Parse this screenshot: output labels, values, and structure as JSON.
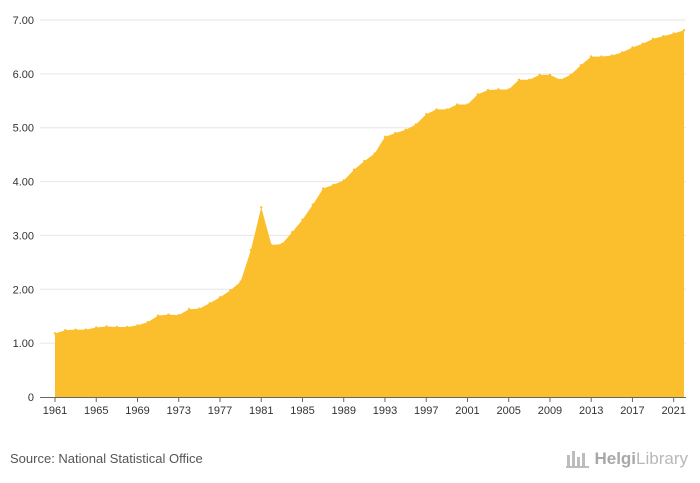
{
  "source_text": "Source: National Statistical Office",
  "logo": {
    "brand": "Helgi",
    "suffix": "Library",
    "icon": "helgi-library-logo-icon"
  },
  "colors": {
    "area": "#fbbf2d",
    "grid": "#e6e6e6",
    "axis": "#666666"
  },
  "chart_data": {
    "type": "area",
    "title": "",
    "xlabel": "",
    "ylabel": "",
    "xlim": [
      1961,
      2022
    ],
    "ylim": [
      0,
      7
    ],
    "grid": true,
    "y_ticks": [
      "0",
      "1.00",
      "2.00",
      "3.00",
      "4.00",
      "5.00",
      "6.00",
      "7.00"
    ],
    "x_ticks": [
      "1961",
      "1965",
      "1969",
      "1973",
      "1977",
      "1981",
      "1985",
      "1989",
      "1993",
      "1997",
      "2001",
      "2005",
      "2009",
      "2013",
      "2017",
      "2021"
    ],
    "x": [
      1961,
      1962,
      1963,
      1964,
      1965,
      1966,
      1967,
      1968,
      1969,
      1970,
      1971,
      1972,
      1973,
      1974,
      1975,
      1976,
      1977,
      1978,
      1979,
      1980,
      1981,
      1982,
      1983,
      1984,
      1985,
      1986,
      1987,
      1988,
      1989,
      1990,
      1991,
      1992,
      1993,
      1994,
      1995,
      1996,
      1997,
      1998,
      1999,
      2000,
      2001,
      2002,
      2003,
      2004,
      2005,
      2006,
      2007,
      2008,
      2009,
      2010,
      2011,
      2012,
      2013,
      2014,
      2015,
      2016,
      2017,
      2018,
      2019,
      2020,
      2021,
      2022
    ],
    "values": [
      1.18,
      1.24,
      1.25,
      1.25,
      1.29,
      1.31,
      1.3,
      1.3,
      1.33,
      1.39,
      1.51,
      1.53,
      1.52,
      1.63,
      1.64,
      1.74,
      1.85,
      1.98,
      2.14,
      2.73,
      3.52,
      2.82,
      2.84,
      3.06,
      3.29,
      3.57,
      3.87,
      3.94,
      4.02,
      4.22,
      4.38,
      4.52,
      4.83,
      4.9,
      4.96,
      5.06,
      5.25,
      5.34,
      5.34,
      5.43,
      5.43,
      5.62,
      5.7,
      5.71,
      5.71,
      5.89,
      5.89,
      5.98,
      5.98,
      5.89,
      5.98,
      6.16,
      6.32,
      6.32,
      6.34,
      6.4,
      6.49,
      6.56,
      6.65,
      6.7,
      6.75,
      6.81
    ]
  }
}
